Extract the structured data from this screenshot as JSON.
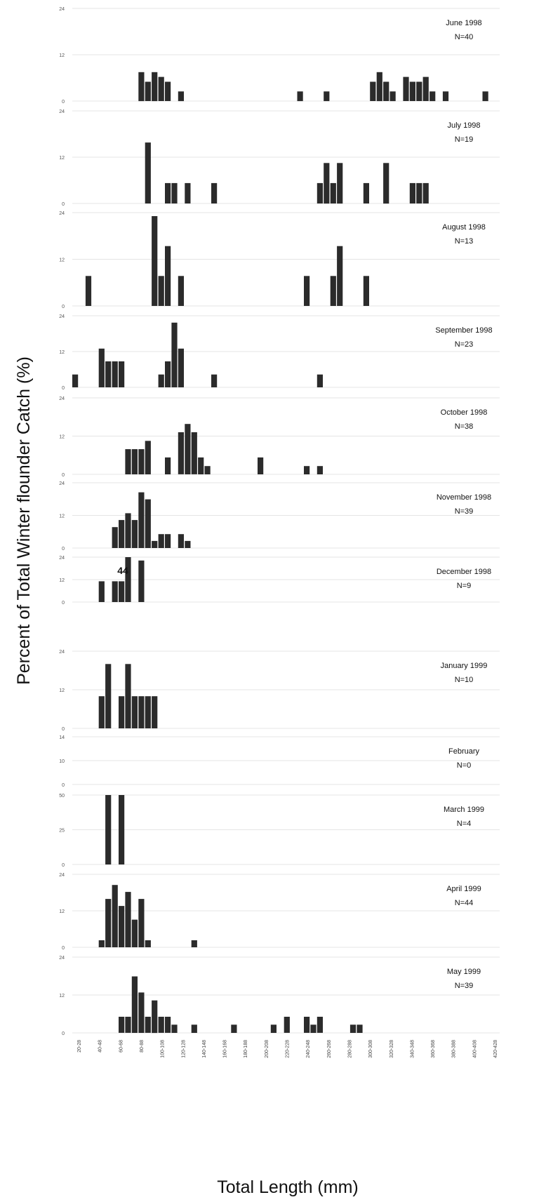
{
  "chart_data": {
    "type": "bar",
    "xlabel": "Total Length (mm)",
    "ylabel": "Percent of Total Winter flounder Catch (%)",
    "x_tick_labels": [
      "20-28",
      "40-48",
      "60-68",
      "80-88",
      "100-108",
      "120-128",
      "140-148",
      "160-168",
      "180-188",
      "200-208",
      "220-228",
      "240-248",
      "260-268",
      "280-288",
      "300-308",
      "320-328",
      "340-348",
      "360-368",
      "380-388",
      "400-408",
      "420-428"
    ],
    "annotation": "44",
    "panels": [
      {
        "title": "June 1998",
        "n": "N=40",
        "yticks": [
          "24",
          "12",
          "0"
        ],
        "ymax": 24,
        "bars": [
          [
            70,
            7.5
          ],
          [
            75,
            5
          ],
          [
            80,
            7.5
          ],
          [
            85,
            6.25
          ],
          [
            90,
            5
          ],
          [
            100,
            2.5
          ],
          [
            190,
            2.5
          ],
          [
            210,
            2.5
          ],
          [
            245,
            5
          ],
          [
            250,
            7.5
          ],
          [
            255,
            5
          ],
          [
            260,
            2.5
          ],
          [
            270,
            6.25
          ],
          [
            275,
            5
          ],
          [
            280,
            5
          ],
          [
            285,
            6.25
          ],
          [
            290,
            2.5
          ],
          [
            300,
            2.5
          ],
          [
            330,
            2.5
          ]
        ]
      },
      {
        "title": "July 1998",
        "n": "N=19",
        "yticks": [
          "24",
          "12",
          "0"
        ],
        "ymax": 24,
        "bars": [
          [
            75,
            15.8
          ],
          [
            90,
            5.3
          ],
          [
            95,
            5.3
          ],
          [
            105,
            5.3
          ],
          [
            125,
            5.3
          ],
          [
            205,
            5.3
          ],
          [
            210,
            10.5
          ],
          [
            215,
            5.3
          ],
          [
            220,
            10.5
          ],
          [
            240,
            5.3
          ],
          [
            255,
            10.5
          ],
          [
            275,
            5.3
          ],
          [
            280,
            5.3
          ],
          [
            285,
            5.3
          ]
        ]
      },
      {
        "title": "August 1998",
        "n": "N=13",
        "yticks": [
          "24",
          "12",
          "0"
        ],
        "ymax": 24,
        "bars": [
          [
            30,
            7.7
          ],
          [
            80,
            23.1
          ],
          [
            85,
            7.7
          ],
          [
            90,
            15.4
          ],
          [
            100,
            7.7
          ],
          [
            195,
            7.7
          ],
          [
            215,
            7.7
          ],
          [
            220,
            15.4
          ],
          [
            240,
            7.7
          ]
        ]
      },
      {
        "title": "September 1998",
        "n": "N=23",
        "yticks": [
          "24",
          "12",
          "0"
        ],
        "ymax": 24,
        "bars": [
          [
            20,
            4.3
          ],
          [
            40,
            13
          ],
          [
            45,
            8.7
          ],
          [
            50,
            8.7
          ],
          [
            55,
            8.7
          ],
          [
            85,
            4.3
          ],
          [
            90,
            8.7
          ],
          [
            95,
            21.7
          ],
          [
            100,
            13
          ],
          [
            125,
            4.3
          ],
          [
            205,
            4.3
          ]
        ]
      },
      {
        "title": "October 1998",
        "n": "N=38",
        "yticks": [
          "24",
          "12",
          "0"
        ],
        "ymax": 24,
        "bars": [
          [
            60,
            7.9
          ],
          [
            65,
            7.9
          ],
          [
            70,
            7.9
          ],
          [
            75,
            10.5
          ],
          [
            90,
            5.3
          ],
          [
            100,
            13.2
          ],
          [
            105,
            15.8
          ],
          [
            110,
            13.2
          ],
          [
            115,
            5.3
          ],
          [
            120,
            2.6
          ],
          [
            160,
            5.3
          ],
          [
            195,
            2.6
          ],
          [
            205,
            2.6
          ]
        ]
      },
      {
        "title": "November 1998",
        "n": "N=39",
        "yticks": [
          "24",
          "12",
          "0"
        ],
        "ymax": 24,
        "bars": [
          [
            50,
            7.7
          ],
          [
            55,
            10.3
          ],
          [
            60,
            12.8
          ],
          [
            65,
            10.3
          ],
          [
            70,
            20.5
          ],
          [
            75,
            17.9
          ],
          [
            80,
            2.6
          ],
          [
            85,
            5.1
          ],
          [
            90,
            5.1
          ],
          [
            100,
            5.1
          ],
          [
            105,
            2.6
          ]
        ]
      },
      {
        "title": "December 1998",
        "n": "N=9",
        "yticks": [
          "24",
          "12",
          "0"
        ],
        "ymax": 24,
        "bars": [
          [
            40,
            11.1
          ],
          [
            50,
            11.1
          ],
          [
            55,
            11.1
          ],
          [
            60,
            44.4
          ],
          [
            70,
            22.2
          ]
        ]
      },
      {
        "title": "January 1999",
        "n": "N=10",
        "yticks": [
          "24",
          "12",
          "0"
        ],
        "ymax": 24,
        "bars": [
          [
            40,
            10
          ],
          [
            45,
            20
          ],
          [
            55,
            10
          ],
          [
            60,
            20
          ],
          [
            65,
            10
          ],
          [
            70,
            10
          ],
          [
            75,
            10
          ],
          [
            80,
            10
          ]
        ]
      },
      {
        "title": "February",
        "n": "N=0",
        "yticks": [
          "14",
          "10",
          "0"
        ],
        "ymax": 14,
        "bars": []
      },
      {
        "title": "March 1999",
        "n": "N=4",
        "yticks": [
          "50",
          "25",
          "0"
        ],
        "ymax": 50,
        "bars": [
          [
            45,
            50
          ],
          [
            55,
            50
          ]
        ]
      },
      {
        "title": "April 1999",
        "n": "N=44",
        "yticks": [
          "24",
          "12",
          "0"
        ],
        "ymax": 24,
        "bars": [
          [
            40,
            2.3
          ],
          [
            45,
            15.9
          ],
          [
            50,
            20.5
          ],
          [
            55,
            13.6
          ],
          [
            60,
            18.2
          ],
          [
            65,
            9.1
          ],
          [
            70,
            15.9
          ],
          [
            75,
            2.3
          ],
          [
            110,
            2.3
          ]
        ]
      },
      {
        "title": "May 1999",
        "n": "N=39",
        "yticks": [
          "24",
          "12",
          "0"
        ],
        "ymax": 24,
        "bars": [
          [
            55,
            5.1
          ],
          [
            60,
            5.1
          ],
          [
            65,
            17.9
          ],
          [
            70,
            12.8
          ],
          [
            75,
            5.1
          ],
          [
            80,
            10.3
          ],
          [
            85,
            5.1
          ],
          [
            90,
            5.1
          ],
          [
            95,
            2.6
          ],
          [
            110,
            2.6
          ],
          [
            140,
            2.6
          ],
          [
            170,
            2.6
          ],
          [
            180,
            5.1
          ],
          [
            195,
            5.1
          ],
          [
            200,
            2.6
          ],
          [
            205,
            5.1
          ],
          [
            230,
            2.6
          ],
          [
            235,
            2.6
          ]
        ]
      }
    ]
  }
}
